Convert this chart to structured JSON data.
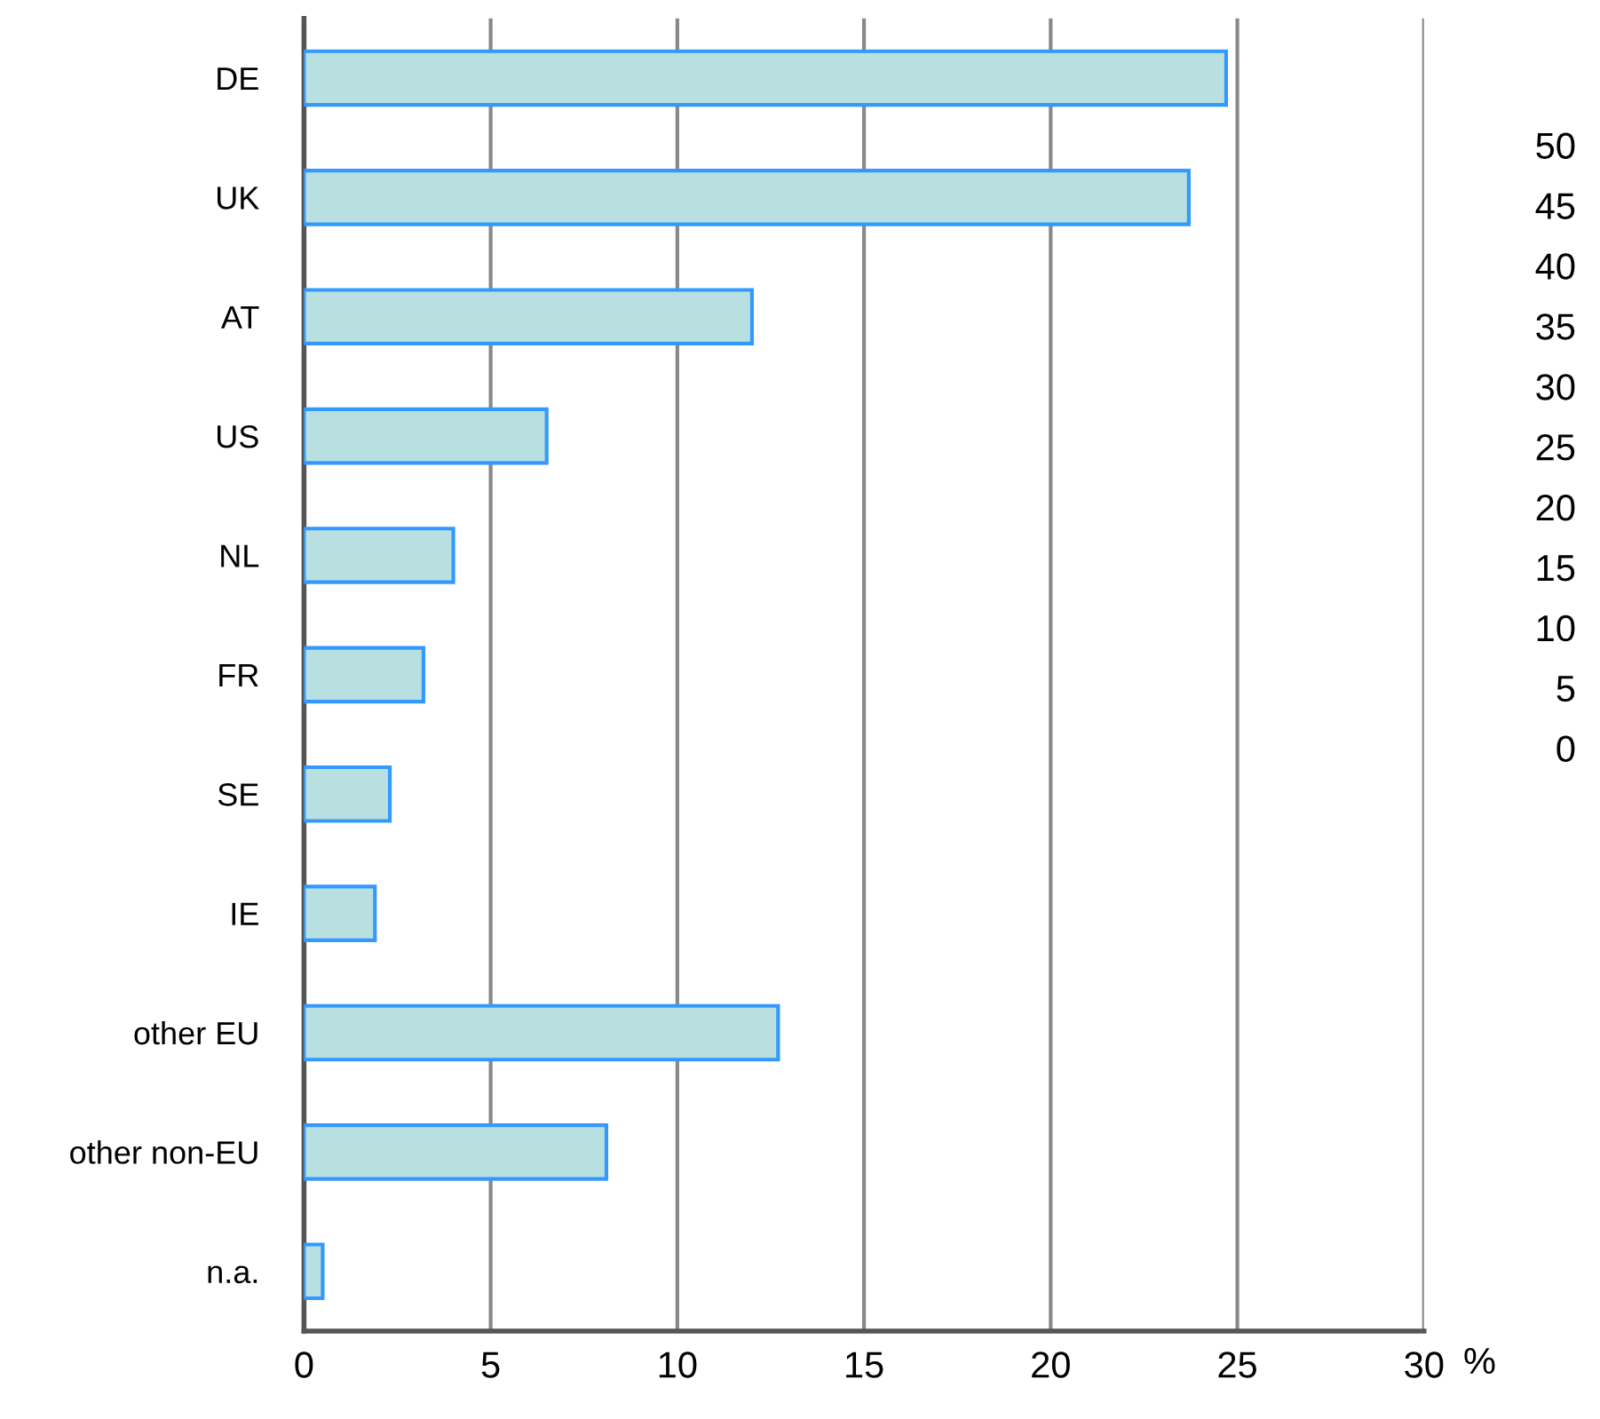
{
  "chart_data": {
    "type": "bar",
    "orientation": "horizontal",
    "categories": [
      "DE",
      "UK",
      "AT",
      "US",
      "NL",
      "FR",
      "SE",
      "IE",
      "other EU",
      "other non-EU",
      "n.a."
    ],
    "values": [
      24.7,
      23.7,
      12.0,
      6.5,
      4.0,
      3.2,
      2.3,
      1.9,
      12.7,
      8.1,
      0.5
    ],
    "color": "#b9e0e0",
    "xlim": [
      0,
      30
    ],
    "xticks": [
      0,
      5,
      10,
      15,
      20,
      25,
      30
    ],
    "xlabel": "%",
    "grid": "x",
    "annotations": [
      "50",
      "45",
      "40",
      "35",
      "30",
      "25",
      "20",
      "15",
      "10",
      "5",
      "0"
    ]
  }
}
